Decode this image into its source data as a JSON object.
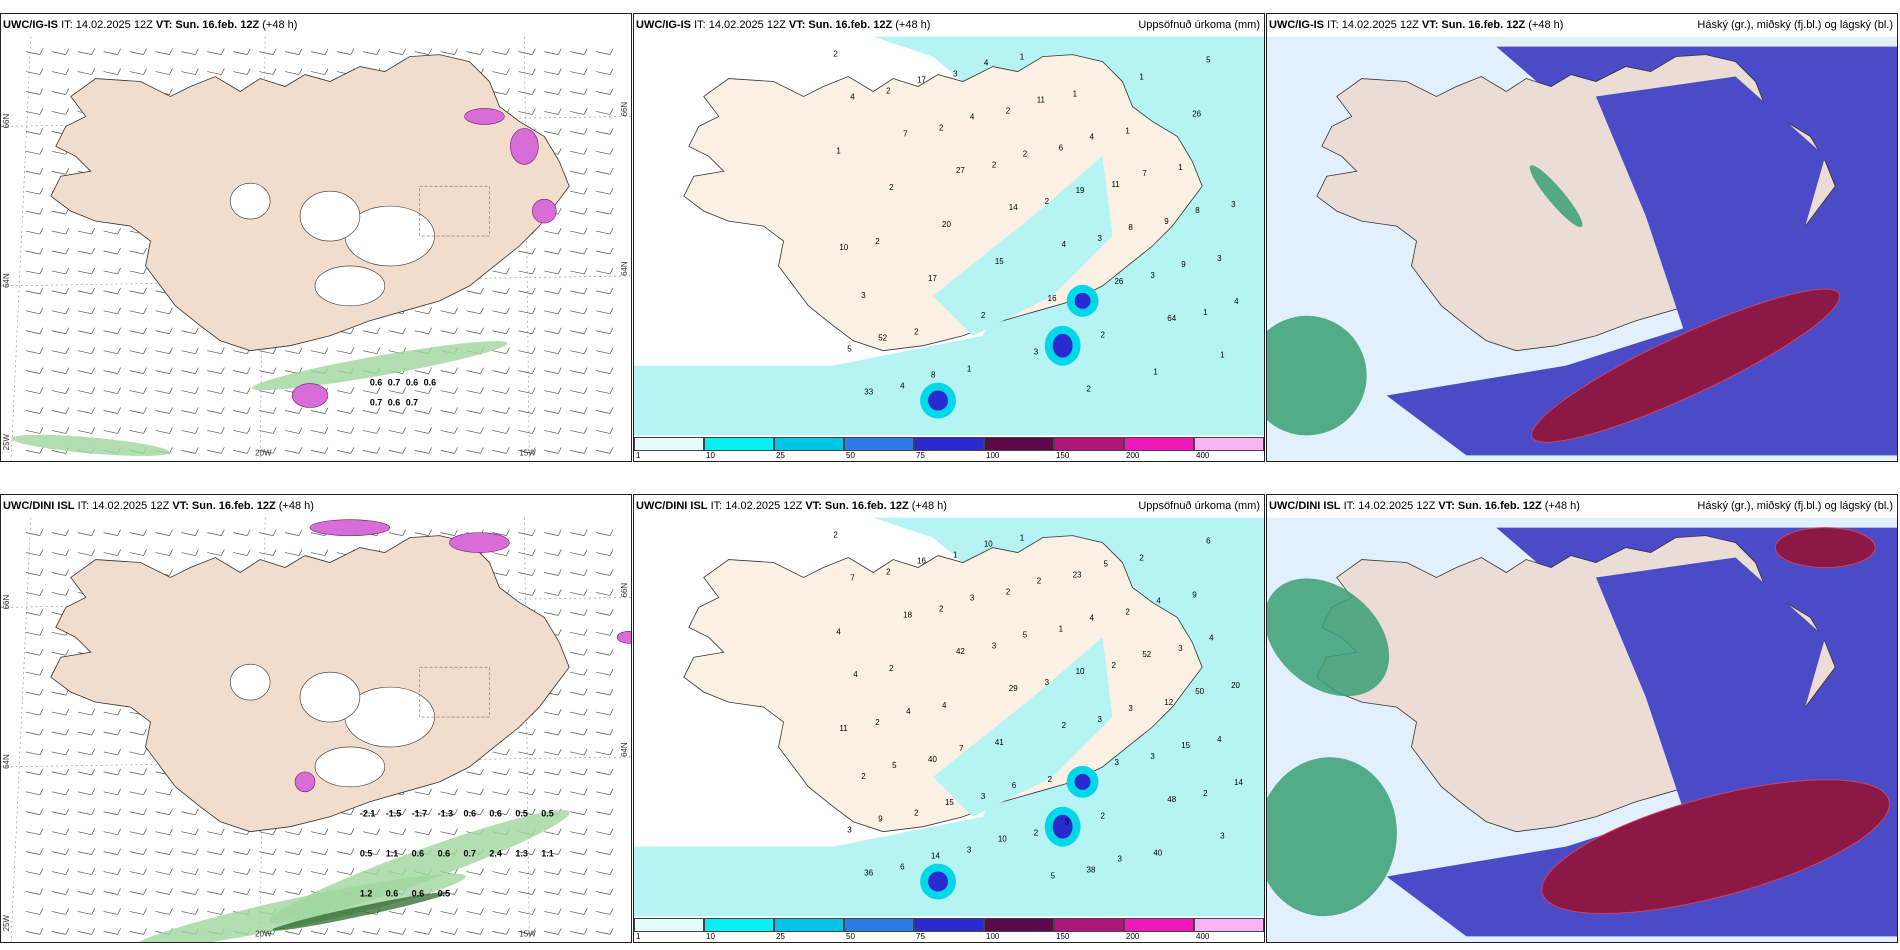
{
  "panels": [
    {
      "model": "UWC/IG-IS",
      "it_label": "IT:",
      "it_value": "14.02.2025 12Z",
      "vt_label": "VT:",
      "vt_value": "Sun. 16.feb. 12Z",
      "lead": "(+48 h)",
      "right_title": "",
      "lat_labels": [
        "66N",
        "64N",
        "25W"
      ],
      "lon_labels": [
        "20W",
        "15W"
      ],
      "right_lat_labels": [
        "66N",
        "64N"
      ],
      "wind_values": [
        "0.6",
        "0.7",
        "0.6",
        "0.6",
        "0.7",
        "0.6",
        "0.7"
      ]
    },
    {
      "model": "UWC/IG-IS",
      "it_label": "IT:",
      "it_value": "14.02.2025 12Z",
      "vt_label": "VT:",
      "vt_value": "Sun. 16.feb. 12Z",
      "lead": "(+48 h)",
      "right_title": "Uppsöfnuð úrkoma (mm)",
      "precip_numbers": [
        "2",
        "2",
        "2",
        "2",
        "2",
        "3",
        "3",
        "1",
        "5",
        "4",
        "3",
        "2",
        "6",
        "11",
        "9",
        "3",
        "3",
        "2",
        "1",
        "1",
        "1",
        "1",
        "1",
        "3",
        "2",
        "17",
        "2",
        "3",
        "2",
        "1",
        "26",
        "1",
        "2",
        "20",
        "15",
        "16",
        "2",
        "1",
        "5",
        "4",
        "7",
        "27",
        "14",
        "4",
        "26",
        "64",
        "1",
        "33",
        "17",
        "4",
        "2",
        "19",
        "8",
        "9",
        "4",
        "52",
        "8",
        "4",
        "11",
        "4",
        "7",
        "8",
        "10"
      ]
    },
    {
      "model": "UWC/IG-IS",
      "it_label": "IT:",
      "it_value": "14.02.2025 12Z",
      "vt_label": "VT:",
      "vt_value": "Sun. 16.feb. 12Z",
      "lead": "(+48 h)",
      "right_title": "Háský (gr.), miðský (fj.bl.) og lágský (bl.)"
    },
    {
      "model": "UWC/DINI ISL",
      "it_label": "IT:",
      "it_value": "14.02.2025 12Z",
      "vt_label": "VT:",
      "vt_value": "Sun. 16.feb. 12Z",
      "lead": "(+48 h)",
      "right_title": "",
      "lat_labels": [
        "66N",
        "64N",
        "25W"
      ],
      "lon_labels": [
        "20W",
        "15W"
      ],
      "right_lat_labels": [
        "66N",
        "64N"
      ],
      "wind_values": [
        "-2.1",
        "-1.5",
        "-1.7",
        "-1.3",
        "0.6",
        "0.6",
        "0.5",
        "0.5",
        "0.5",
        "1.1",
        "0.6",
        "0.6",
        "0.7",
        "2.4",
        "1.3",
        "1.1",
        "1.2",
        "0.6",
        "0.6",
        "0.5"
      ]
    },
    {
      "model": "UWC/DINI ISL",
      "it_label": "IT:",
      "it_value": "14.02.2025 12Z",
      "vt_label": "VT:",
      "vt_value": "Sun. 16.feb. 12Z",
      "lead": "(+48 h)",
      "right_title": "Uppsöfnuð úrkoma (mm)",
      "precip_numbers": [
        "2",
        "2",
        "2",
        "3",
        "3",
        "3",
        "3",
        "2",
        "3",
        "6",
        "1",
        "2",
        "1",
        "2",
        "12",
        "4",
        "2",
        "2",
        "3",
        "1",
        "23",
        "2",
        "3",
        "20",
        "2",
        "40",
        "3",
        "2",
        "38",
        "2",
        "9",
        "4",
        "2",
        "4",
        "41",
        "2",
        "2",
        "40",
        "6",
        "7",
        "18",
        "42",
        "29",
        "2",
        "3",
        "48",
        "3",
        "36",
        "16",
        "3",
        "5",
        "10",
        "3",
        "15",
        "14",
        "9",
        "14",
        "10",
        "2",
        "4",
        "52",
        "50",
        "11",
        "5",
        "15",
        "10",
        "5",
        "5",
        "4",
        "4",
        "4",
        "4",
        "7",
        "6",
        "3",
        "3"
      ]
    },
    {
      "model": "UWC/DINI ISL",
      "it_label": "IT:",
      "it_value": "14.02.2025 12Z",
      "vt_label": "VT:",
      "vt_value": "Sun. 16.feb. 12Z",
      "lead": "(+48 h)",
      "right_title": "Háský (gr.), miðský (fj.bl.) og lágský (bl.)"
    }
  ],
  "colorbar": {
    "labels": [
      "1",
      "10",
      "25",
      "50",
      "75",
      "100",
      "150",
      "200",
      "400"
    ],
    "colors": [
      "#e4fbfb",
      "#00f2f2",
      "#00c4e8",
      "#2e7be8",
      "#2a2ad0",
      "#5a0a48",
      "#b0167a",
      "#f018b8",
      "#f6b4f0"
    ]
  },
  "colors": {
    "land": "#f2dccb",
    "land_precip": "#fbf0e4",
    "sea": "#ffffff",
    "precip_light": "#b6f3f3",
    "cloud_low": "#4b4bc8",
    "cloud_mid": "#8a1a45",
    "cloud_high": "#3aa073",
    "wind_green": "#9fd69f",
    "wind_pink": "#d96dd8"
  }
}
